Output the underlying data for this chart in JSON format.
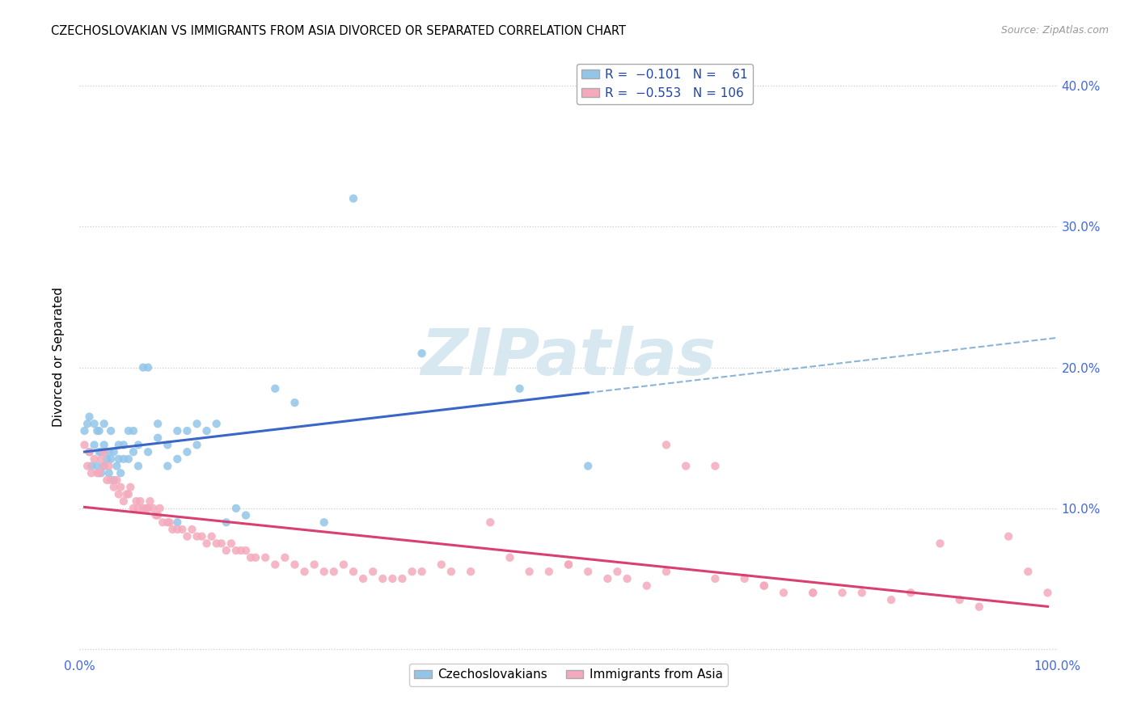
{
  "title": "CZECHOSLOVAKIAN VS IMMIGRANTS FROM ASIA DIVORCED OR SEPARATED CORRELATION CHART",
  "source": "Source: ZipAtlas.com",
  "ylabel": "Divorced or Separated",
  "ytick_values": [
    0.0,
    0.1,
    0.2,
    0.3,
    0.4
  ],
  "ytick_labels": [
    "",
    "10.0%",
    "20.0%",
    "30.0%",
    "40.0%"
  ],
  "xlim": [
    0.0,
    1.0
  ],
  "ylim": [
    -0.005,
    0.42
  ],
  "blue_color": "#92C5E8",
  "pink_color": "#F4AABC",
  "blue_line_color": "#3A66C8",
  "pink_line_color": "#D84070",
  "grey_dash_color": "#8AB4D8",
  "watermark_color": "#D8E8F0",
  "background_color": "#FFFFFF",
  "grid_color": "#CCCCCC",
  "blue_scatter_x": [
    0.005,
    0.008,
    0.01,
    0.01,
    0.012,
    0.015,
    0.015,
    0.018,
    0.018,
    0.02,
    0.02,
    0.022,
    0.022,
    0.025,
    0.025,
    0.025,
    0.028,
    0.03,
    0.03,
    0.032,
    0.032,
    0.035,
    0.035,
    0.038,
    0.04,
    0.04,
    0.042,
    0.045,
    0.045,
    0.05,
    0.05,
    0.055,
    0.055,
    0.06,
    0.06,
    0.065,
    0.07,
    0.07,
    0.08,
    0.08,
    0.09,
    0.09,
    0.1,
    0.1,
    0.1,
    0.11,
    0.11,
    0.12,
    0.12,
    0.13,
    0.14,
    0.15,
    0.16,
    0.17,
    0.2,
    0.22,
    0.25,
    0.28,
    0.35,
    0.45,
    0.52
  ],
  "blue_scatter_y": [
    0.155,
    0.16,
    0.14,
    0.165,
    0.13,
    0.145,
    0.16,
    0.13,
    0.155,
    0.14,
    0.155,
    0.125,
    0.14,
    0.13,
    0.145,
    0.16,
    0.135,
    0.125,
    0.14,
    0.135,
    0.155,
    0.12,
    0.14,
    0.13,
    0.135,
    0.145,
    0.125,
    0.135,
    0.145,
    0.135,
    0.155,
    0.14,
    0.155,
    0.13,
    0.145,
    0.2,
    0.14,
    0.2,
    0.15,
    0.16,
    0.13,
    0.145,
    0.09,
    0.135,
    0.155,
    0.14,
    0.155,
    0.145,
    0.16,
    0.155,
    0.16,
    0.09,
    0.1,
    0.095,
    0.185,
    0.175,
    0.09,
    0.32,
    0.21,
    0.185,
    0.13
  ],
  "pink_scatter_x": [
    0.005,
    0.008,
    0.01,
    0.012,
    0.015,
    0.018,
    0.02,
    0.022,
    0.025,
    0.025,
    0.028,
    0.03,
    0.032,
    0.035,
    0.038,
    0.04,
    0.042,
    0.045,
    0.048,
    0.05,
    0.052,
    0.055,
    0.058,
    0.06,
    0.062,
    0.065,
    0.068,
    0.07,
    0.072,
    0.075,
    0.078,
    0.08,
    0.082,
    0.085,
    0.09,
    0.092,
    0.095,
    0.1,
    0.105,
    0.11,
    0.115,
    0.12,
    0.125,
    0.13,
    0.135,
    0.14,
    0.145,
    0.15,
    0.155,
    0.16,
    0.165,
    0.17,
    0.175,
    0.18,
    0.19,
    0.2,
    0.21,
    0.22,
    0.23,
    0.24,
    0.25,
    0.26,
    0.27,
    0.28,
    0.29,
    0.3,
    0.31,
    0.32,
    0.33,
    0.34,
    0.35,
    0.37,
    0.38,
    0.4,
    0.42,
    0.44,
    0.46,
    0.48,
    0.5,
    0.52,
    0.54,
    0.56,
    0.58,
    0.6,
    0.62,
    0.65,
    0.68,
    0.7,
    0.72,
    0.75,
    0.78,
    0.8,
    0.83,
    0.85,
    0.88,
    0.9,
    0.92,
    0.95,
    0.97,
    0.99,
    0.5,
    0.55,
    0.6,
    0.65,
    0.7,
    0.75
  ],
  "pink_scatter_y": [
    0.145,
    0.13,
    0.14,
    0.125,
    0.135,
    0.125,
    0.125,
    0.135,
    0.13,
    0.14,
    0.12,
    0.13,
    0.12,
    0.115,
    0.12,
    0.11,
    0.115,
    0.105,
    0.11,
    0.11,
    0.115,
    0.1,
    0.105,
    0.1,
    0.105,
    0.1,
    0.1,
    0.1,
    0.105,
    0.1,
    0.095,
    0.095,
    0.1,
    0.09,
    0.09,
    0.09,
    0.085,
    0.085,
    0.085,
    0.08,
    0.085,
    0.08,
    0.08,
    0.075,
    0.08,
    0.075,
    0.075,
    0.07,
    0.075,
    0.07,
    0.07,
    0.07,
    0.065,
    0.065,
    0.065,
    0.06,
    0.065,
    0.06,
    0.055,
    0.06,
    0.055,
    0.055,
    0.06,
    0.055,
    0.05,
    0.055,
    0.05,
    0.05,
    0.05,
    0.055,
    0.055,
    0.06,
    0.055,
    0.055,
    0.09,
    0.065,
    0.055,
    0.055,
    0.06,
    0.055,
    0.05,
    0.05,
    0.045,
    0.145,
    0.13,
    0.13,
    0.05,
    0.045,
    0.04,
    0.04,
    0.04,
    0.04,
    0.035,
    0.04,
    0.075,
    0.035,
    0.03,
    0.08,
    0.055,
    0.04,
    0.06,
    0.055,
    0.055,
    0.05,
    0.045,
    0.04
  ],
  "legend_blue_label": "R =  -0.101   N =   61",
  "legend_pink_label": "R =  -0.553   N = 106",
  "bottom_legend_blue": "Czechoslovakians",
  "bottom_legend_pink": "Immigrants from Asia"
}
